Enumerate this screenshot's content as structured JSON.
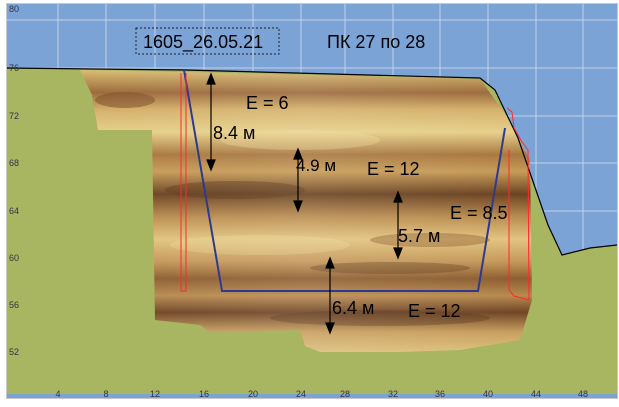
{
  "colors": {
    "sky": "#7ba3d6",
    "ground": "#a8b561",
    "grid": "#d7dfef",
    "surface_line": "#000000",
    "trench": "#2e3a8f",
    "marker": "#ff2a2a",
    "arrow": "#000000",
    "frame": "#c8c8c8"
  },
  "header": {
    "file_label": "1605_26.05.21",
    "section_label": "ПК 27 по 28"
  },
  "axes": {
    "y_ticks": [
      "80",
      "76",
      "72",
      "68",
      "64",
      "60",
      "56",
      "52"
    ],
    "x_ticks": [
      "4",
      "8",
      "12",
      "16",
      "20",
      "24",
      "28",
      "32",
      "36",
      "40",
      "44",
      "48"
    ]
  },
  "layers": [
    {
      "name": "layer-1",
      "modulus": "E = 6",
      "thickness": "8.4 м"
    },
    {
      "name": "layer-2",
      "modulus": "E = 12",
      "thickness": "4.9 м"
    },
    {
      "name": "layer-3",
      "modulus": "E = 8.5",
      "thickness": "5.7 м"
    },
    {
      "name": "layer-4",
      "modulus": "E = 12",
      "thickness": "6.4 м"
    }
  ]
}
